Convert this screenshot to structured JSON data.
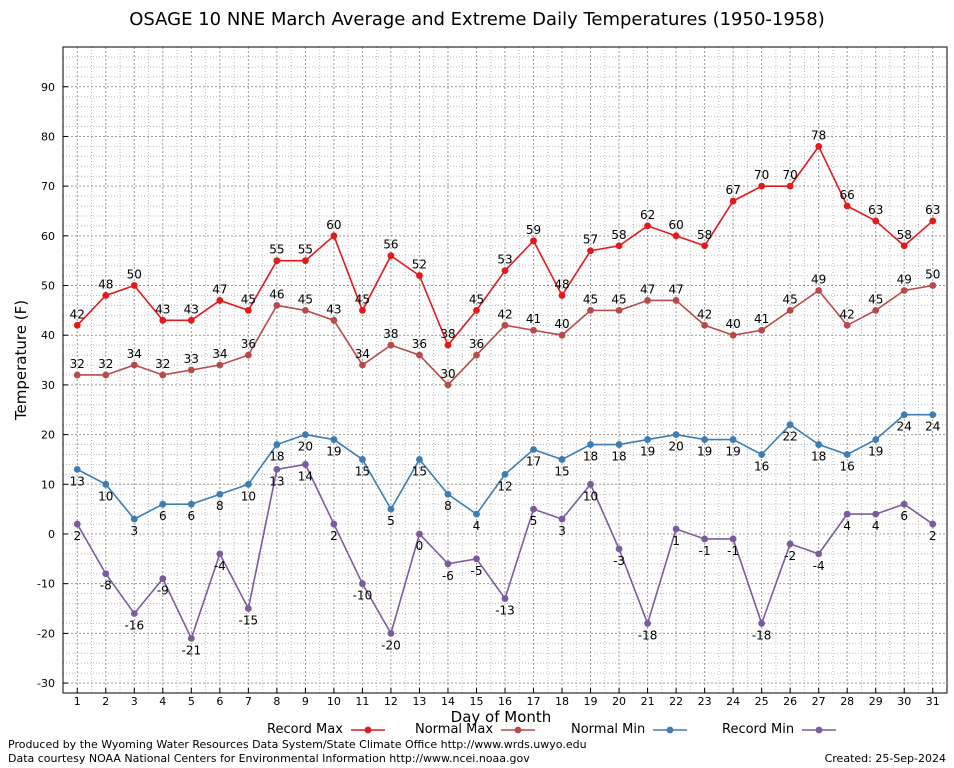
{
  "chart_data": {
    "type": "line",
    "title": "OSAGE 10 NNE March Average and Extreme Daily Temperatures (1950-1958)",
    "xlabel": "Day of Month",
    "ylabel": "Temperature (F)",
    "x": [
      1,
      2,
      3,
      4,
      5,
      6,
      7,
      8,
      9,
      10,
      11,
      12,
      13,
      14,
      15,
      16,
      17,
      18,
      19,
      20,
      21,
      22,
      23,
      24,
      25,
      26,
      27,
      28,
      29,
      30,
      31
    ],
    "xlim": [
      0.5,
      31.5
    ],
    "ylim": [
      -32,
      98
    ],
    "yticks": [
      -30,
      -20,
      -10,
      0,
      10,
      20,
      30,
      40,
      50,
      60,
      70,
      80,
      90
    ],
    "grid": true,
    "legend_position": "bottom",
    "series": [
      {
        "name": "Record Max",
        "color": "#e31a1c",
        "values": [
          42,
          48,
          50,
          43,
          43,
          47,
          45,
          55,
          55,
          60,
          45,
          56,
          52,
          38,
          45,
          53,
          59,
          48,
          57,
          58,
          62,
          60,
          58,
          67,
          70,
          70,
          78,
          66,
          63,
          58,
          63
        ]
      },
      {
        "name": "Normal Max",
        "color": "#b84a4a",
        "values": [
          32,
          32,
          34,
          32,
          33,
          34,
          36,
          46,
          45,
          43,
          34,
          38,
          36,
          30,
          36,
          42,
          41,
          40,
          45,
          45,
          47,
          47,
          42,
          40,
          41,
          45,
          49,
          42,
          45,
          49,
          50
        ]
      },
      {
        "name": "Normal Min",
        "color": "#3d7db3",
        "values": [
          13,
          10,
          3,
          6,
          6,
          8,
          10,
          18,
          20,
          19,
          15,
          5,
          15,
          8,
          4,
          12,
          17,
          15,
          18,
          18,
          19,
          20,
          19,
          19,
          16,
          22,
          18,
          16,
          19,
          24,
          24
        ]
      },
      {
        "name": "Record Min",
        "color": "#7b5b9e",
        "values": [
          2,
          -8,
          -16,
          -9,
          -21,
          -4,
          -15,
          13,
          14,
          2,
          -10,
          -20,
          0,
          -6,
          -5,
          -13,
          5,
          3,
          10,
          -3,
          -18,
          1,
          -1,
          -1,
          -18,
          -2,
          -4,
          4,
          4,
          6,
          2
        ]
      }
    ]
  },
  "footer": {
    "produced": "Produced by the Wyoming Water Resources Data System/State Climate Office http://www.wrds.uwyo.edu",
    "courtesy": "Data courtesy NOAA National Centers for Environmental Information http://www.ncei.noaa.gov",
    "created": "Created:  25-Sep-2024"
  }
}
